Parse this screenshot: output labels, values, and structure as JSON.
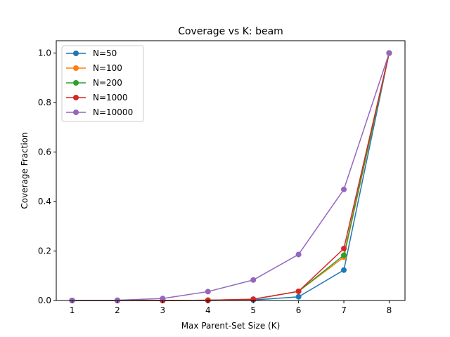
{
  "chart_data": {
    "type": "line",
    "title": "Coverage vs K: beam",
    "xlabel": "Max Parent-Set Size (K)",
    "ylabel": "Coverage Fraction",
    "x": [
      1,
      2,
      3,
      4,
      5,
      6,
      7,
      8
    ],
    "xlim": [
      0.65,
      8.35
    ],
    "ylim": [
      0,
      1.05
    ],
    "xticks": [
      1,
      2,
      3,
      4,
      5,
      6,
      7,
      8
    ],
    "yticks": [
      0.0,
      0.2,
      0.4,
      0.6,
      0.8,
      1.0
    ],
    "ytick_labels": [
      "0.0",
      "0.2",
      "0.4",
      "0.6",
      "0.8",
      "1.0"
    ],
    "grid": false,
    "legend_position": "top-left",
    "series": [
      {
        "name": "N=50",
        "color": "#1f77b4",
        "values": [
          0,
          0,
          0,
          0,
          0.002,
          0.015,
          0.123,
          1.0
        ]
      },
      {
        "name": "N=100",
        "color": "#ff7f0e",
        "values": [
          0,
          0,
          0,
          0.001,
          0.005,
          0.037,
          0.175,
          1.0
        ]
      },
      {
        "name": "N=200",
        "color": "#2ca02c",
        "values": [
          0,
          0,
          0,
          0.001,
          0.005,
          0.037,
          0.183,
          1.0
        ]
      },
      {
        "name": "N=1000",
        "color": "#d62728",
        "values": [
          0,
          0,
          0,
          0.001,
          0.005,
          0.037,
          0.21,
          1.0
        ]
      },
      {
        "name": "N=10000",
        "color": "#9467bd",
        "values": [
          0,
          0.001,
          0.008,
          0.036,
          0.083,
          0.186,
          0.449,
          1.0
        ]
      }
    ]
  }
}
